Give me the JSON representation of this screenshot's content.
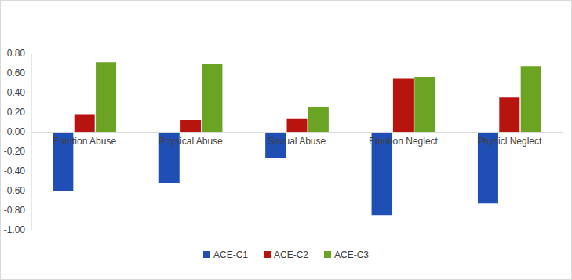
{
  "chart_data": {
    "type": "bar",
    "categories": [
      "Emotion Abuse",
      "Physical Abuse",
      "Sexual Abuse",
      "Emotion Neglect",
      "Physicl Neglect"
    ],
    "series": [
      {
        "name": "ACE-C1",
        "color": "#1f4fb5",
        "values": [
          -0.6,
          -0.52,
          -0.27,
          -0.85,
          -0.73
        ]
      },
      {
        "name": "ACE-C2",
        "color": "#b8140f",
        "values": [
          0.18,
          0.12,
          0.13,
          0.54,
          0.35
        ]
      },
      {
        "name": "ACE-C3",
        "color": "#6ba322",
        "values": [
          0.71,
          0.69,
          0.25,
          0.56,
          0.67
        ]
      }
    ],
    "ylim": [
      -1.0,
      0.8
    ],
    "yticks": [
      {
        "value": -1.0,
        "label": "-1.00"
      },
      {
        "value": -0.8,
        "label": "-0.80"
      },
      {
        "value": -0.6,
        "label": "-0.60"
      },
      {
        "value": -0.4,
        "label": "-0.40"
      },
      {
        "value": -0.2,
        "label": "-0.20"
      },
      {
        "value": 0,
        "label": "0.00"
      },
      {
        "value": 0.2,
        "label": "0.20"
      },
      {
        "value": 0.4,
        "label": "0.40"
      },
      {
        "value": 0.6,
        "label": "0.60"
      },
      {
        "value": 0.8,
        "label": "0.80"
      }
    ],
    "grid": false,
    "legend": "bottom"
  }
}
